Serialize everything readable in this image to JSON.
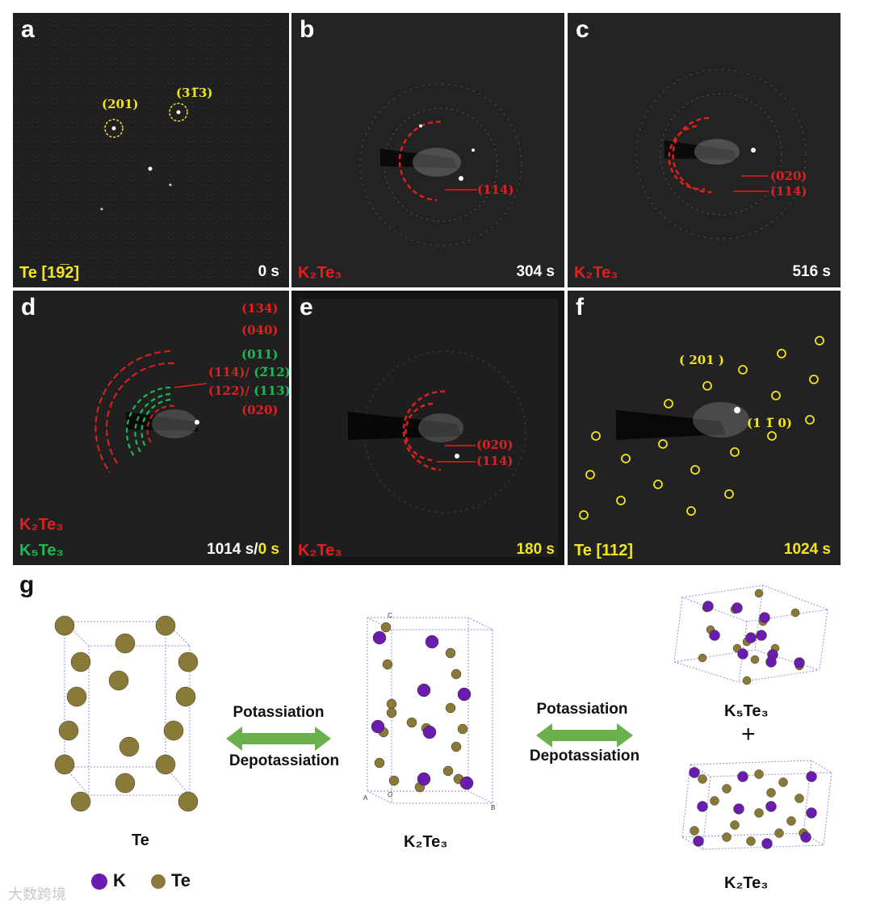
{
  "panels": {
    "a": {
      "letter": "a",
      "time": "0 s",
      "phase": "Te [19̅2]",
      "labels": [
        "(201)",
        "(31̅3)"
      ]
    },
    "b": {
      "letter": "b",
      "time": "304 s",
      "phase": "K₂Te₃",
      "labels": [
        "(114)"
      ]
    },
    "c": {
      "letter": "c",
      "time": "516 s",
      "phase": "K₂Te₃",
      "labels": [
        "(020)",
        "(114)"
      ]
    },
    "d": {
      "letter": "d",
      "time_a": "1014 s/",
      "time_b": "0 s",
      "phase_red": "K₂Te₃",
      "phase_green": "K₅Te₃",
      "labels_red": [
        "(134)",
        "(040)",
        "(020)"
      ],
      "label_green_1": "(011)",
      "row4_red": "(114)/",
      "row4_green": "(2̅12)",
      "row5_red": "(122)/",
      "row5_green": "(113)"
    },
    "e": {
      "letter": "e",
      "time": "180 s",
      "phase": "K₂Te₃",
      "labels": [
        "(020)",
        "(114)"
      ]
    },
    "f": {
      "letter": "f",
      "time": "1024 s",
      "phase": "Te [112]",
      "labels": [
        "( 201 )",
        "(1 1̅ 0)"
      ]
    }
  },
  "schematic": {
    "letter": "g",
    "structures": [
      "Te",
      "K₂Te₃",
      "K₅Te₃",
      "K₂Te₃"
    ],
    "plus": "+",
    "arrow1": {
      "top": "Potassiation",
      "bottom": "Depotassiation"
    },
    "arrow2": {
      "top": "Potassiation",
      "bottom": "Depotassiation"
    },
    "legend": [
      {
        "symbol": "K",
        "color": "#6a1bb0"
      },
      {
        "symbol": "Te",
        "color": "#8a7a3a"
      }
    ],
    "axis_letters": [
      "C",
      "A",
      "O",
      "B"
    ]
  },
  "watermark": "大数跨境",
  "colors": {
    "red": "#e0201f",
    "yellow": "#f2e51a",
    "green": "#1db954",
    "arrow": "#6ab04c",
    "k_atom": "#6a1bb0",
    "te_atom": "#8a7a3a"
  }
}
